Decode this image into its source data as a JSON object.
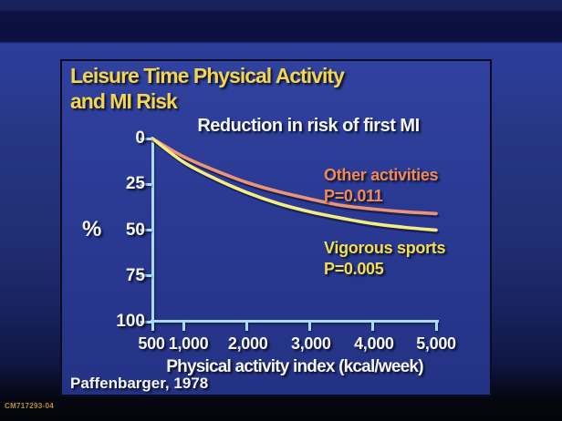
{
  "colors": {
    "title_yellow": "#f3d54e",
    "text_white": "#f4f5f9",
    "legend_orange": "#ef8a57",
    "legend_yellow": "#f1de52",
    "axis_blue": "#a9dbf8",
    "code_gold": "#b29238"
  },
  "slide": {
    "code": "CM717293-04",
    "title_line1": "Leisure Time Physical Activity",
    "title_line2": "and MI Risk",
    "citation": "Paffenbarger, 1978"
  },
  "chart_data": {
    "type": "line",
    "title": "Reduction in risk of first MI",
    "xlabel": "Physical activity index (kcal/week)",
    "ylabel": "%",
    "xlim": [
      500,
      5000
    ],
    "ylim": [
      0,
      100
    ],
    "y_axis_inverted": true,
    "grid": false,
    "legend_position": "inline-right",
    "x_ticks": [
      "500",
      "1,000",
      "2,000",
      "3,000",
      "4,000",
      "5,000"
    ],
    "x_tick_values": [
      500,
      1000,
      2000,
      3000,
      4000,
      5000
    ],
    "y_ticks": [
      "0",
      "25",
      "50",
      "75",
      "100"
    ],
    "y_tick_values": [
      0,
      25,
      50,
      75,
      100
    ],
    "series": [
      {
        "name": "Other activities",
        "p_value": "P=0.011",
        "color": "#eb9476",
        "x": [
          500,
          1000,
          1500,
          2000,
          2500,
          3000,
          3500,
          4000,
          4500,
          5000
        ],
        "values": [
          0,
          10,
          17.5,
          24,
          29,
          33,
          36.5,
          38.5,
          40,
          41
        ]
      },
      {
        "name": "Vigorous sports",
        "p_value": "P=0.005",
        "color": "#f5ec86",
        "x": [
          500,
          1000,
          1500,
          2000,
          2500,
          3000,
          3500,
          4000,
          4500,
          5000
        ],
        "values": [
          0,
          13,
          22,
          29.5,
          35.5,
          40,
          43.5,
          46.5,
          48.5,
          50
        ]
      }
    ]
  }
}
